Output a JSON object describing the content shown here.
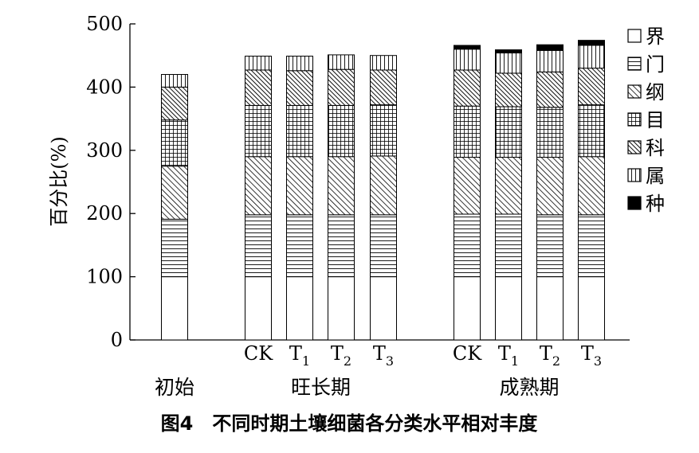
{
  "chart_data": {
    "type": "bar",
    "stacked": true,
    "caption": "图4　不同时期土壤细菌各分类水平相对丰度",
    "ylabel": "百分比(%)",
    "ylim": [
      0,
      500
    ],
    "yticks": [
      "0",
      "100",
      "200",
      "300",
      "400",
      "500"
    ],
    "groups": [
      {
        "label": "初始",
        "bars": [
          {
            "label": "",
            "sub": ""
          }
        ]
      },
      {
        "label": "旺长期",
        "bars": [
          {
            "label": "CK",
            "sub": ""
          },
          {
            "label": "T",
            "sub": "1"
          },
          {
            "label": "T",
            "sub": "2"
          },
          {
            "label": "T",
            "sub": "3"
          }
        ]
      },
      {
        "label": "成熟期",
        "bars": [
          {
            "label": "CK",
            "sub": ""
          },
          {
            "label": "T",
            "sub": "1"
          },
          {
            "label": "T",
            "sub": "2"
          },
          {
            "label": "T",
            "sub": "3"
          }
        ]
      }
    ],
    "series": [
      {
        "name": "界",
        "pattern": "empty",
        "values": [
          100,
          100,
          100,
          100,
          100,
          100,
          100,
          100,
          100
        ]
      },
      {
        "name": "门",
        "pattern": "hlines",
        "values": [
          91,
          98,
          98,
          98,
          98,
          99,
          99,
          98,
          98
        ]
      },
      {
        "name": "纲",
        "pattern": "diag",
        "values": [
          84,
          92,
          92,
          92,
          93,
          90,
          90,
          91,
          92
        ]
      },
      {
        "name": "目",
        "pattern": "grid",
        "values": [
          73,
          81,
          81,
          81,
          81,
          81,
          80,
          79,
          82
        ]
      },
      {
        "name": "科",
        "pattern": "diagdense",
        "values": [
          52,
          56,
          55,
          57,
          55,
          57,
          53,
          56,
          58
        ]
      },
      {
        "name": "属",
        "pattern": "vlines",
        "values": [
          20,
          22,
          23,
          23,
          23,
          33,
          32,
          34,
          36
        ]
      },
      {
        "name": "种",
        "pattern": "solid",
        "values": [
          0,
          0,
          0,
          0,
          0,
          6,
          5,
          9,
          8
        ]
      }
    ]
  }
}
